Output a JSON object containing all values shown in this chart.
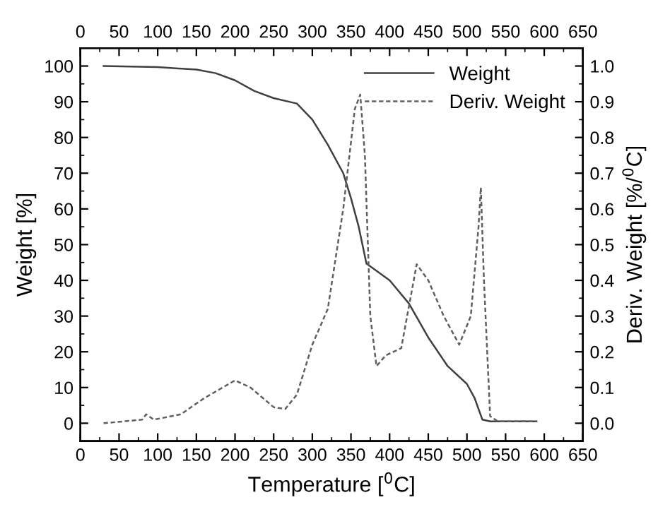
{
  "chart_data": {
    "type": "line",
    "xlabel": "Temperature [$^{0}$C]",
    "ylabel": "Weight [%]",
    "y2label": "Deriv. Weight [%/$^{0}$C]",
    "xlim": [
      0,
      650
    ],
    "xticks": [
      0,
      50,
      100,
      150,
      200,
      250,
      300,
      350,
      400,
      450,
      500,
      550,
      600,
      650
    ],
    "x2lim": [
      0,
      650
    ],
    "x2ticks": [
      0,
      50,
      100,
      150,
      200,
      250,
      300,
      350,
      400,
      450,
      500,
      550,
      600,
      650
    ],
    "ylim": [
      -5,
      105
    ],
    "yticks": [
      0,
      10,
      20,
      30,
      40,
      50,
      60,
      70,
      80,
      90,
      100
    ],
    "y2lim": [
      -0.05,
      1.05
    ],
    "y2ticks": [
      {
        "value": 0,
        "label": "0.0"
      },
      0.1,
      0.2,
      0.3,
      0.4,
      0.5,
      0.6,
      0.7,
      0.8,
      0.9,
      {
        "value": 1,
        "label": "1.0"
      }
    ],
    "legend": "top right",
    "grid": false,
    "series": [
      {
        "name": "Weight",
        "color": "#404040",
        "line_style": "solid",
        "x": [
          30,
          100,
          150,
          175,
          200,
          225,
          250,
          280,
          300,
          320,
          340,
          350,
          360,
          370,
          400,
          425,
          450,
          475,
          500,
          510,
          520,
          530,
          590
        ],
        "values": [
          100,
          99.7,
          99,
          98,
          96,
          93,
          91,
          89.5,
          85,
          78,
          70,
          63,
          55,
          44.7,
          40,
          33.5,
          24,
          16,
          11,
          7,
          1,
          0.5,
          0.5
        ]
      },
      {
        "name": "Deriv. Weight",
        "color": "#606060",
        "line_style": "dashed",
        "axis": "y2",
        "x": [
          30,
          80,
          85,
          95,
          130,
          160,
          200,
          220,
          250,
          265,
          280,
          300,
          320,
          340,
          355,
          362,
          368,
          375,
          383,
          395,
          415,
          435,
          450,
          470,
          490,
          505,
          515,
          518,
          522,
          530,
          540,
          590
        ],
        "values": [
          0.0,
          0.01,
          0.025,
          0.01,
          0.025,
          0.07,
          0.12,
          0.1,
          0.045,
          0.04,
          0.08,
          0.22,
          0.32,
          0.6,
          0.88,
          0.92,
          0.75,
          0.3,
          0.16,
          0.19,
          0.21,
          0.445,
          0.4,
          0.3,
          0.22,
          0.3,
          0.55,
          0.66,
          0.4,
          0.02,
          0.005,
          0.005
        ]
      }
    ]
  }
}
